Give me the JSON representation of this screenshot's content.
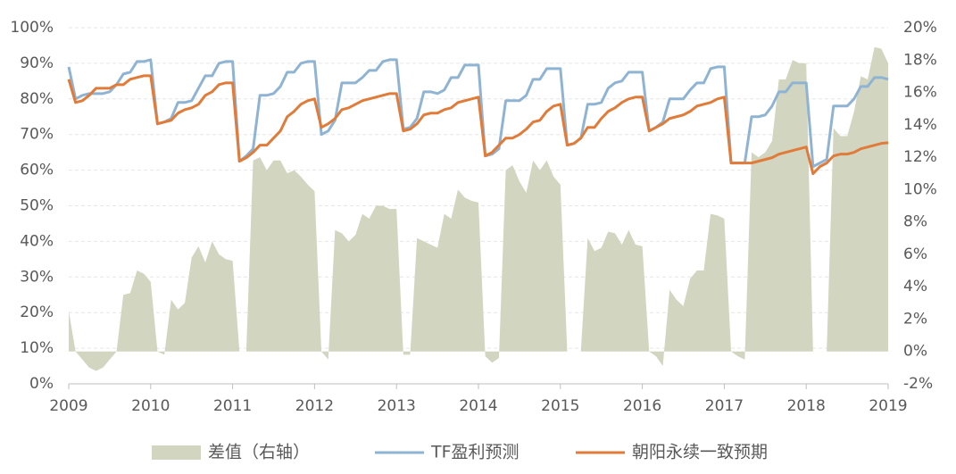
{
  "chart_data": {
    "type": "line",
    "categories": [
      "2009",
      null,
      null,
      null,
      null,
      null,
      null,
      null,
      null,
      null,
      null,
      null,
      "2010",
      null,
      null,
      null,
      null,
      null,
      null,
      null,
      null,
      null,
      null,
      null,
      "2011",
      null,
      null,
      null,
      null,
      null,
      null,
      null,
      null,
      null,
      null,
      null,
      "2012",
      null,
      null,
      null,
      null,
      null,
      null,
      null,
      null,
      null,
      null,
      null,
      "2013",
      null,
      null,
      null,
      null,
      null,
      null,
      null,
      null,
      null,
      null,
      null,
      "2014",
      null,
      null,
      null,
      null,
      null,
      null,
      null,
      null,
      null,
      null,
      null,
      "2015",
      null,
      null,
      null,
      null,
      null,
      null,
      null,
      null,
      null,
      null,
      null,
      "2016",
      null,
      null,
      null,
      null,
      null,
      null,
      null,
      null,
      null,
      null,
      null,
      "2017",
      null,
      null,
      null,
      null,
      null,
      null,
      null,
      null,
      null,
      null,
      null,
      "2018",
      null,
      null,
      null,
      null,
      null,
      null,
      null,
      null,
      null,
      null,
      null,
      "2019"
    ],
    "series": [
      {
        "name": "差值（右轴）",
        "type": "area",
        "axis": "y2",
        "color": "#d2d5c0",
        "values": [
          2.5,
          0,
          -0.5,
          -1,
          -1.2,
          -1,
          -0.5,
          0,
          3.5,
          3.6,
          5,
          4.8,
          4.3,
          0,
          -0.2,
          3.2,
          2.6,
          3,
          5.8,
          6.5,
          5.5,
          6.8,
          6,
          5.7,
          5.6,
          0,
          0,
          11.8,
          12,
          11.2,
          11.8,
          11.8,
          11,
          11.2,
          10.8,
          10.3,
          9.9,
          0,
          -0.5,
          7.5,
          7.3,
          6.8,
          7.2,
          8.5,
          8.2,
          9,
          9,
          8.8,
          8.8,
          -0.2,
          -0.2,
          7,
          6.8,
          6.6,
          6.4,
          8.5,
          8.2,
          10,
          9.5,
          9.3,
          9.2,
          -0.3,
          -0.7,
          -0.4,
          11.2,
          11.5,
          10.5,
          9.8,
          11.8,
          11.2,
          11.8,
          10.8,
          10.3,
          0,
          0,
          0,
          7,
          6.2,
          6.4,
          7.4,
          7.3,
          6.6,
          7.5,
          6.6,
          6.5,
          0,
          -0.3,
          -0.9,
          3.8,
          3.2,
          2.8,
          4.5,
          5,
          5,
          8.5,
          8.4,
          8.2,
          0,
          -0.3,
          -0.5,
          12.3,
          12,
          12.3,
          13,
          16.8,
          16.8,
          18,
          17.8,
          17.8,
          0,
          0,
          0,
          13.8,
          13.3,
          13.3,
          14.8,
          17,
          16.8,
          18.8,
          18.7,
          17.8
        ]
      },
      {
        "name": "TF盈利预测",
        "color": "#8fb4d3",
        "values": [
          89,
          80,
          81,
          81.5,
          81.5,
          81.5,
          82,
          84,
          87,
          87.5,
          90.5,
          90.5,
          91,
          73,
          73.5,
          74.5,
          79,
          79,
          79.5,
          83,
          86.5,
          86.5,
          90,
          90.5,
          90.5,
          62.5,
          64,
          66,
          81,
          81,
          81.5,
          83.5,
          87.5,
          87.5,
          90,
          90.5,
          90.5,
          70,
          71,
          74,
          84.5,
          84.5,
          84.5,
          86,
          88,
          88,
          90.5,
          91,
          91,
          71.5,
          72,
          74.5,
          82,
          82,
          81.5,
          82.5,
          86,
          86,
          89.5,
          89.5,
          89.5,
          64,
          64.5,
          66,
          79.5,
          79.5,
          79.5,
          81,
          85.5,
          85.5,
          88.5,
          88.5,
          88.5,
          67,
          67.5,
          69,
          78.5,
          78.5,
          79,
          83,
          84.5,
          85,
          87.5,
          87.5,
          87.5,
          71,
          72,
          73.5,
          80,
          80,
          80,
          82.5,
          84.5,
          84.5,
          88.5,
          89,
          89,
          62,
          62,
          62,
          75,
          75,
          75.5,
          78,
          82,
          82,
          84.5,
          84.5,
          84.5,
          61,
          62,
          63,
          78,
          78,
          78,
          80,
          83.5,
          83.5,
          86,
          86,
          85.5
        ]
      },
      {
        "name": "朝阳永续一致预期",
        "color": "#e07b39",
        "values": [
          85.5,
          79,
          79.5,
          81,
          83,
          83,
          83,
          84,
          84,
          85.5,
          86,
          86.5,
          86.5,
          73,
          73.5,
          74,
          76,
          77,
          77.5,
          78.5,
          81,
          82,
          84,
          84.5,
          84.5,
          62.5,
          63.5,
          65,
          67,
          67,
          69,
          71,
          75,
          76.5,
          78.5,
          79.5,
          80,
          72,
          73,
          74.5,
          77,
          77.5,
          78.5,
          79.5,
          80,
          80.5,
          81,
          81.5,
          81.5,
          71,
          71.5,
          73,
          75.5,
          76,
          76,
          77,
          77.5,
          79,
          79.5,
          80,
          80.5,
          64,
          65,
          67,
          69,
          69,
          70,
          71.5,
          73.5,
          74,
          76.5,
          78,
          78.5,
          67,
          67.5,
          69,
          72,
          72,
          74.5,
          76.5,
          77.5,
          79,
          80,
          80.5,
          80.5,
          71,
          72,
          73,
          74.5,
          75,
          75.5,
          76.5,
          78,
          78.5,
          79,
          80,
          80.5,
          62,
          62,
          62,
          62,
          62.5,
          63,
          63.5,
          64.5,
          65,
          65.5,
          66,
          66.5,
          59,
          61,
          62,
          64,
          64.5,
          64.5,
          65,
          66,
          66.5,
          67,
          67.5,
          67.7
        ]
      }
    ],
    "ylim": [
      0,
      100
    ],
    "yticks": [
      {
        "value": 0,
        "label": "0%"
      },
      {
        "value": 10,
        "label": "10%"
      },
      {
        "value": 20,
        "label": "20%"
      },
      {
        "value": 30,
        "label": "30%"
      },
      {
        "value": 40,
        "label": "40%"
      },
      {
        "value": 50,
        "label": "50%"
      },
      {
        "value": 60,
        "label": "60%"
      },
      {
        "value": 70,
        "label": "70%"
      },
      {
        "value": 80,
        "label": "80%"
      },
      {
        "value": 90,
        "label": "90%"
      },
      {
        "value": 100,
        "label": "100%"
      }
    ],
    "y2lim": [
      -2,
      20
    ],
    "y2ticks": [
      {
        "value": -2,
        "label": "-2%"
      },
      {
        "value": 0,
        "label": "0%"
      },
      {
        "value": 2,
        "label": "2%"
      },
      {
        "value": 4,
        "label": "4%"
      },
      {
        "value": 6,
        "label": "6%"
      },
      {
        "value": 8,
        "label": "8%"
      },
      {
        "value": 10,
        "label": "10%"
      },
      {
        "value": 12,
        "label": "12%"
      },
      {
        "value": 14,
        "label": "14%"
      },
      {
        "value": 16,
        "label": "16%"
      },
      {
        "value": 18,
        "label": "18%"
      },
      {
        "value": 20,
        "label": "20%"
      }
    ],
    "grid": true,
    "legend": "bottom"
  }
}
